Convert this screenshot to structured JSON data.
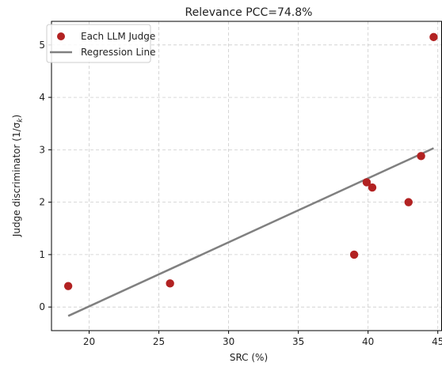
{
  "chart_data": {
    "type": "scatter",
    "title": "Relevance PCC=74.8%",
    "xlabel": "SRC (%)",
    "ylabel": "Judge discriminator (1/σ",
    "ylabel_subscript": "k",
    "ylabel_suffix": ")",
    "xlim": [
      17.3,
      45.3
    ],
    "ylim": [
      -0.45,
      5.45
    ],
    "xticks": [
      20,
      25,
      30,
      35,
      40,
      45
    ],
    "yticks": [
      0,
      1,
      2,
      3,
      4,
      5
    ],
    "grid": true,
    "legend_position": "top-left",
    "series": [
      {
        "name": "Each LLM Judge",
        "kind": "scatter",
        "color": "#b22222",
        "points": [
          {
            "x": 18.5,
            "y": 0.4
          },
          {
            "x": 25.8,
            "y": 0.45
          },
          {
            "x": 39.0,
            "y": 1.0
          },
          {
            "x": 39.9,
            "y": 2.38
          },
          {
            "x": 40.3,
            "y": 2.28
          },
          {
            "x": 42.9,
            "y": 2.0
          },
          {
            "x": 43.8,
            "y": 2.88
          },
          {
            "x": 44.7,
            "y": 5.15
          }
        ]
      },
      {
        "name": "Regression Line",
        "kind": "line",
        "color": "#808080",
        "points": [
          {
            "x": 18.5,
            "y": -0.17
          },
          {
            "x": 44.7,
            "y": 3.03
          }
        ]
      }
    ]
  }
}
